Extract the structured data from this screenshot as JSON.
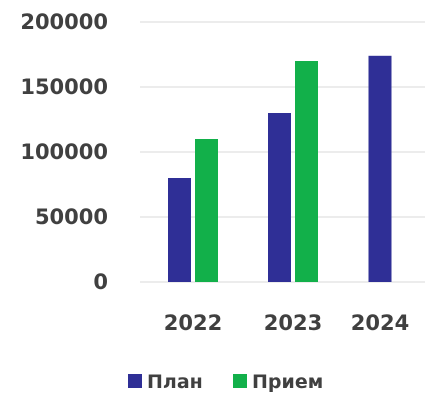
{
  "chart_data": {
    "type": "bar",
    "title": "",
    "xlabel": "",
    "ylabel": "",
    "categories": [
      "2022",
      "2023",
      "2024"
    ],
    "series": [
      {
        "name": "План",
        "color": "#2f2f96",
        "values": [
          80000,
          130000,
          174000
        ]
      },
      {
        "name": "Прием",
        "color": "#12b04a",
        "values": [
          110000,
          170000,
          null
        ]
      }
    ],
    "ylim": [
      0,
      200000
    ],
    "yticks": [
      "0",
      "50000",
      "100000",
      "150000",
      "200000"
    ],
    "grid": true,
    "legend": "bottom"
  }
}
